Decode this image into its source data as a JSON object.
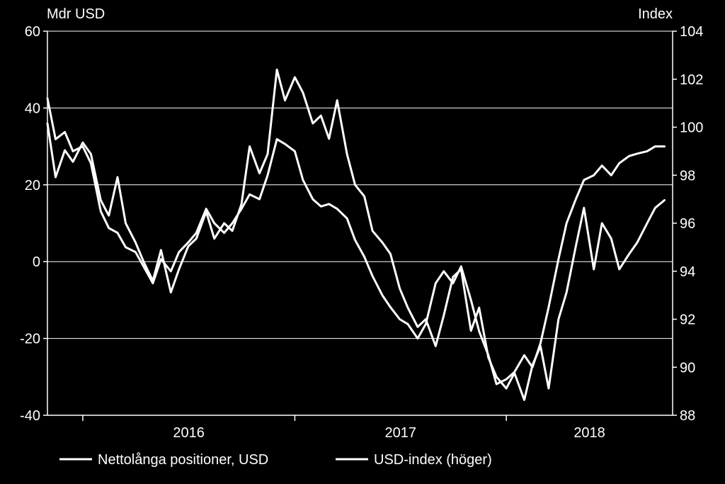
{
  "chart_data": {
    "type": "line",
    "title": "",
    "left_axis_unit": "Mdr USD",
    "right_axis_unit": "Index",
    "left_ylim": [
      -40,
      60
    ],
    "left_ticks": [
      "60",
      "40",
      "20",
      "0",
      "-20",
      "-40"
    ],
    "right_ylim": [
      88,
      104
    ],
    "right_ticks": [
      "104",
      "102",
      "100",
      "98",
      "96",
      "94",
      "92",
      "90",
      "88"
    ],
    "x_labels": [
      "2016",
      "2017",
      "2018"
    ],
    "xlim": [
      "2015-11-01",
      "2018-10-15"
    ],
    "grid": "horizontal",
    "legend_position": "bottom",
    "line_color": "#ffffff",
    "background_color": "#000000",
    "series": [
      {
        "name": "Nettolånga positioner, USD",
        "axis": "left",
        "x": [
          "2015-11-01",
          "2015-11-15",
          "2015-12-01",
          "2015-12-15",
          "2016-01-01",
          "2016-01-15",
          "2016-02-01",
          "2016-02-15",
          "2016-03-01",
          "2016-03-15",
          "2016-04-01",
          "2016-04-15",
          "2016-05-01",
          "2016-05-15",
          "2016-06-01",
          "2016-06-15",
          "2016-07-01",
          "2016-07-15",
          "2016-08-01",
          "2016-08-15",
          "2016-09-01",
          "2016-09-15",
          "2016-10-01",
          "2016-10-15",
          "2016-11-01",
          "2016-11-15",
          "2016-12-01",
          "2016-12-15",
          "2017-01-01",
          "2017-01-15",
          "2017-02-01",
          "2017-02-15",
          "2017-03-01",
          "2017-03-15",
          "2017-04-01",
          "2017-04-15",
          "2017-05-01",
          "2017-05-15",
          "2017-06-01",
          "2017-06-15",
          "2017-07-01",
          "2017-07-15",
          "2017-08-01",
          "2017-08-15",
          "2017-09-01",
          "2017-09-15",
          "2017-10-01",
          "2017-10-15",
          "2017-11-01",
          "2017-11-15",
          "2017-12-01",
          "2017-12-15",
          "2018-01-01",
          "2018-01-15",
          "2018-02-01",
          "2018-02-15",
          "2018-03-01",
          "2018-03-15",
          "2018-04-01",
          "2018-04-15",
          "2018-05-01",
          "2018-05-15",
          "2018-06-01",
          "2018-06-15",
          "2018-07-01",
          "2018-07-15",
          "2018-08-01",
          "2018-08-15",
          "2018-09-01",
          "2018-09-15",
          "2018-10-01"
        ],
        "values": [
          36,
          22,
          29,
          26,
          31,
          28,
          16,
          12,
          22,
          10,
          5,
          0,
          -5,
          3,
          -8,
          -2,
          4,
          6,
          13,
          6,
          10,
          8,
          15,
          30,
          23,
          28,
          50,
          42,
          48,
          44,
          36,
          38,
          32,
          42,
          28,
          20,
          17,
          8,
          5,
          2,
          -7,
          -12,
          -17,
          -15,
          -22,
          -14,
          -4,
          -2,
          -18,
          -12,
          -25,
          -30,
          -33,
          -29,
          -36,
          -27,
          -22,
          -33,
          -15,
          -8,
          4,
          14,
          -2,
          10,
          6,
          -2,
          2,
          5,
          10,
          14,
          16
        ]
      },
      {
        "name": "USD-index (höger)",
        "axis": "right",
        "x": [
          "2015-11-01",
          "2015-11-15",
          "2015-12-01",
          "2015-12-15",
          "2016-01-01",
          "2016-01-15",
          "2016-02-01",
          "2016-02-15",
          "2016-03-01",
          "2016-03-15",
          "2016-04-01",
          "2016-04-15",
          "2016-05-01",
          "2016-05-15",
          "2016-06-01",
          "2016-06-15",
          "2016-07-01",
          "2016-07-15",
          "2016-08-01",
          "2016-08-15",
          "2016-09-01",
          "2016-09-15",
          "2016-10-01",
          "2016-10-15",
          "2016-11-01",
          "2016-11-15",
          "2016-12-01",
          "2016-12-15",
          "2017-01-01",
          "2017-01-15",
          "2017-02-01",
          "2017-02-15",
          "2017-03-01",
          "2017-03-15",
          "2017-04-01",
          "2017-04-15",
          "2017-05-01",
          "2017-05-15",
          "2017-06-01",
          "2017-06-15",
          "2017-07-01",
          "2017-07-15",
          "2017-08-01",
          "2017-08-15",
          "2017-09-01",
          "2017-09-15",
          "2017-10-01",
          "2017-10-15",
          "2017-11-01",
          "2017-11-15",
          "2017-12-01",
          "2017-12-15",
          "2018-01-01",
          "2018-01-15",
          "2018-02-01",
          "2018-02-15",
          "2018-03-01",
          "2018-03-15",
          "2018-04-01",
          "2018-04-15",
          "2018-05-01",
          "2018-05-15",
          "2018-06-01",
          "2018-06-15",
          "2018-07-01",
          "2018-07-15",
          "2018-08-01",
          "2018-08-15",
          "2018-09-01",
          "2018-09-15",
          "2018-10-01"
        ],
        "values": [
          101.2,
          99.5,
          99.8,
          99.0,
          99.2,
          98.5,
          96.5,
          95.8,
          95.6,
          95.0,
          94.8,
          94.2,
          93.5,
          94.5,
          94.0,
          94.8,
          95.2,
          95.6,
          96.6,
          96.0,
          95.6,
          96.0,
          96.6,
          97.2,
          97.0,
          98.0,
          99.5,
          99.3,
          99.0,
          97.8,
          97.0,
          96.7,
          96.8,
          96.6,
          96.2,
          95.3,
          94.6,
          93.8,
          93.0,
          92.5,
          92.0,
          91.8,
          91.2,
          91.8,
          93.5,
          94.0,
          93.5,
          94.2,
          92.8,
          91.5,
          90.5,
          89.3,
          89.5,
          89.8,
          90.5,
          90.0,
          91.0,
          92.5,
          94.5,
          96.0,
          97.0,
          97.8,
          98.0,
          98.4,
          98.0,
          98.5,
          98.8,
          98.9,
          99.0,
          99.2,
          99.2
        ]
      }
    ]
  }
}
